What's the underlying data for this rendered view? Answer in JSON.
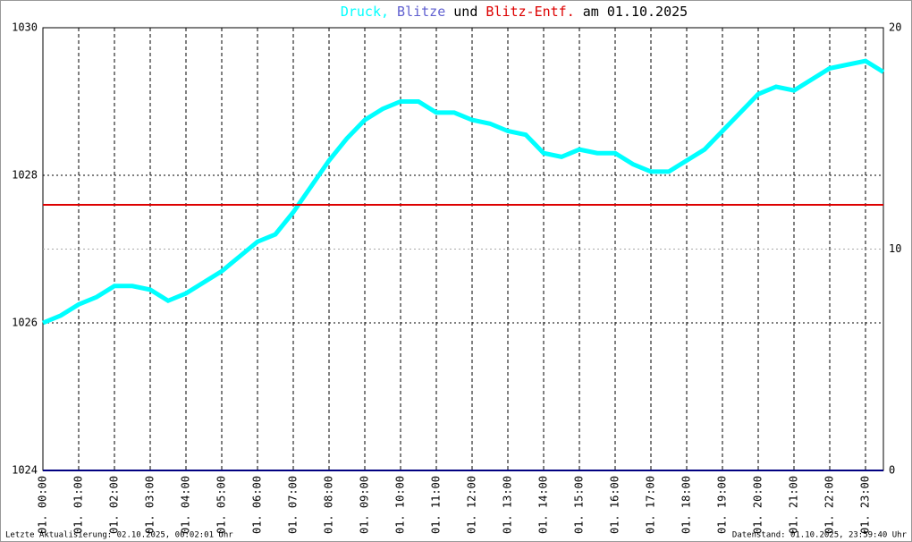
{
  "chart_data": {
    "type": "line",
    "title_separators": [
      ",",
      "und",
      "am 01.10.2025"
    ],
    "footer_left": "Letzte Aktualisierung: 02.10.2025, 00:02:01 Uhr",
    "footer_right": "Datenstand: 01.10.2025, 23:59:40 Uhr",
    "xlim": [
      0,
      23.5
    ],
    "xticks": [
      {
        "value": 0,
        "label": "01. 00:00"
      },
      {
        "value": 1,
        "label": "01. 01:00"
      },
      {
        "value": 2,
        "label": "01. 02:00"
      },
      {
        "value": 3,
        "label": "01. 03:00"
      },
      {
        "value": 4,
        "label": "01. 04:00"
      },
      {
        "value": 5,
        "label": "01. 05:00"
      },
      {
        "value": 6,
        "label": "01. 06:00"
      },
      {
        "value": 7,
        "label": "01. 07:00"
      },
      {
        "value": 8,
        "label": "01. 08:00"
      },
      {
        "value": 9,
        "label": "01. 09:00"
      },
      {
        "value": 10,
        "label": "01. 10:00"
      },
      {
        "value": 11,
        "label": "01. 11:00"
      },
      {
        "value": 12,
        "label": "01. 12:00"
      },
      {
        "value": 13,
        "label": "01. 13:00"
      },
      {
        "value": 14,
        "label": "01. 14:00"
      },
      {
        "value": 15,
        "label": "01. 15:00"
      },
      {
        "value": 16,
        "label": "01. 16:00"
      },
      {
        "value": 17,
        "label": "01. 17:00"
      },
      {
        "value": 18,
        "label": "01. 18:00"
      },
      {
        "value": 19,
        "label": "01. 19:00"
      },
      {
        "value": 20,
        "label": "01. 20:00"
      },
      {
        "value": 21,
        "label": "01. 21:00"
      },
      {
        "value": 22,
        "label": "01. 22:00"
      },
      {
        "value": 23,
        "label": "01. 23:00"
      }
    ],
    "ylim": [
      1024,
      1030
    ],
    "yticks": [
      1024,
      1026,
      1028,
      1030
    ],
    "y2lim": [
      0,
      20
    ],
    "y2ticks": [
      0,
      10,
      20
    ],
    "grid": true,
    "series": [
      {
        "name": "Druck",
        "color": "#00ffff",
        "x": [
          0,
          0.5,
          1,
          1.5,
          2,
          2.5,
          3,
          3.5,
          4,
          4.5,
          5,
          5.5,
          6,
          6.5,
          7,
          7.5,
          8,
          8.5,
          9,
          9.5,
          10,
          10.5,
          11,
          11.5,
          12,
          12.5,
          13,
          13.5,
          14,
          14.5,
          15,
          15.5,
          16,
          16.5,
          17,
          17.5,
          18,
          18.5,
          19,
          19.5,
          20,
          20.5,
          21,
          21.5,
          22,
          22.5,
          23,
          23.5
        ],
        "values": [
          1026.0,
          1026.1,
          1026.25,
          1026.35,
          1026.5,
          1026.5,
          1026.45,
          1026.3,
          1026.4,
          1026.55,
          1026.7,
          1026.9,
          1027.1,
          1027.2,
          1027.5,
          1027.85,
          1028.2,
          1028.5,
          1028.75,
          1028.9,
          1029.0,
          1029.0,
          1028.85,
          1028.85,
          1028.75,
          1028.7,
          1028.6,
          1028.55,
          1028.3,
          1028.25,
          1028.35,
          1028.3,
          1028.3,
          1028.15,
          1028.05,
          1028.05,
          1028.2,
          1028.35,
          1028.6,
          1028.85,
          1029.1,
          1029.2,
          1029.15,
          1029.3,
          1029.45,
          1029.5,
          1029.55,
          1029.4
        ]
      },
      {
        "name": "Blitze",
        "color": "#000080",
        "axis": "y2",
        "x": [
          0,
          23.5
        ],
        "values": [
          0,
          0
        ]
      },
      {
        "name": "Blitz-Entf.",
        "color": "#dd0000",
        "axis": "y2",
        "x": [
          0,
          23.5
        ],
        "values": [
          12,
          12
        ]
      }
    ]
  }
}
